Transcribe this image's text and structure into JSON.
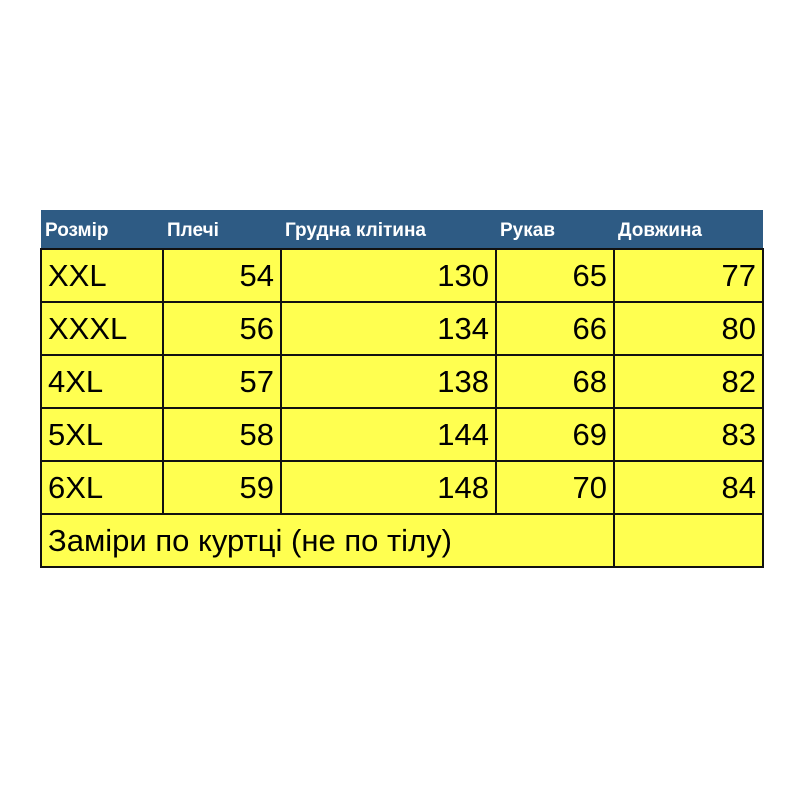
{
  "table": {
    "headers": [
      "Розмір",
      "Плечі",
      "Грудна клітина",
      "Рукав",
      "Довжина"
    ],
    "rows": [
      [
        "XXL",
        "54",
        "130",
        "65",
        "77"
      ],
      [
        "XXXL",
        "56",
        "134",
        "66",
        "80"
      ],
      [
        "4XL",
        "57",
        "138",
        "68",
        "82"
      ],
      [
        "5XL",
        "58",
        "144",
        "69",
        "83"
      ],
      [
        "6XL",
        "59",
        "148",
        "70",
        "84"
      ]
    ],
    "note": "Заміри по куртці  (не по тілу)"
  },
  "colors": {
    "header_bg": "#2e5b84",
    "cell_bg": "#ffff50"
  }
}
